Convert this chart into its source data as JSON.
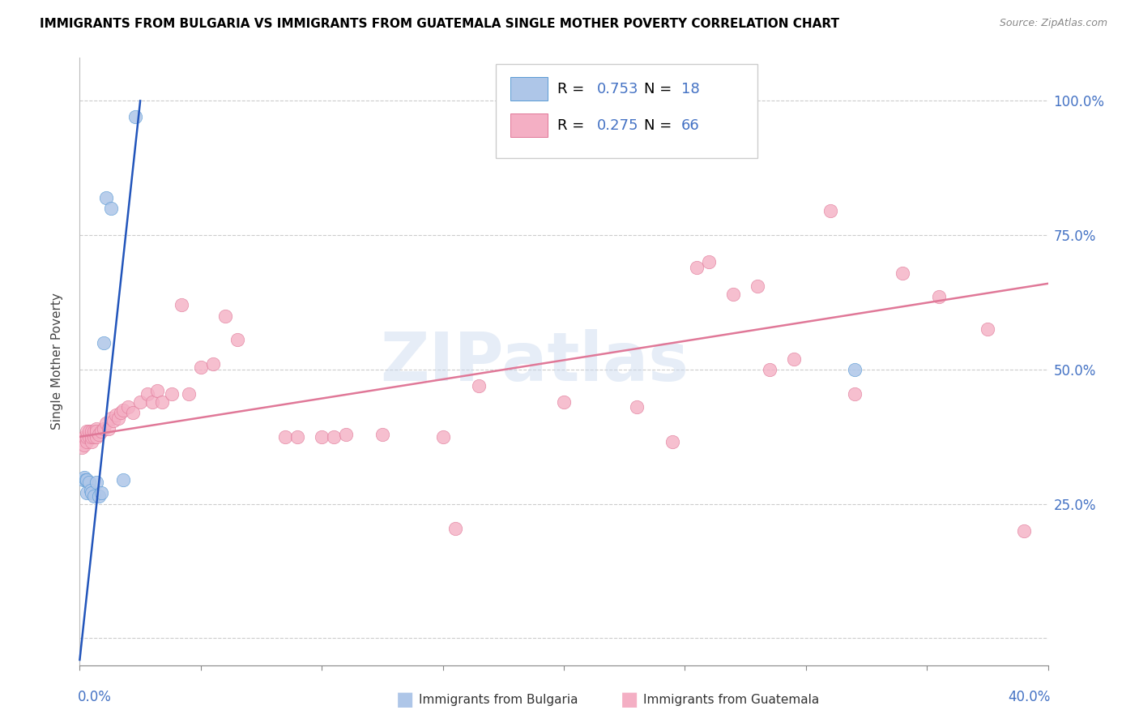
{
  "title": "IMMIGRANTS FROM BULGARIA VS IMMIGRANTS FROM GUATEMALA SINGLE MOTHER POVERTY CORRELATION CHART",
  "source": "Source: ZipAtlas.com",
  "ylabel_label": "Single Mother Poverty",
  "xlim": [
    0.0,
    0.4
  ],
  "ylim": [
    -0.05,
    1.08
  ],
  "ytick_positions": [
    0.0,
    0.25,
    0.5,
    0.75,
    1.0
  ],
  "ytick_labels_right": [
    "",
    "25.0%",
    "50.0%",
    "75.0%",
    "100.0%"
  ],
  "color_bulgaria_fill": "#aec6e8",
  "color_bulgaria_edge": "#5b9bd5",
  "color_guatemala_fill": "#f4afc4",
  "color_guatemala_edge": "#e07898",
  "color_line_bulgaria": "#2255bb",
  "color_line_guatemala": "#e07898",
  "watermark": "ZIPatlas",
  "bulgaria_x": [
    0.0015,
    0.002,
    0.0025,
    0.003,
    0.003,
    0.004,
    0.0045,
    0.005,
    0.006,
    0.007,
    0.008,
    0.009,
    0.01,
    0.011,
    0.013,
    0.018,
    0.023,
    0.32
  ],
  "bulgaria_y": [
    0.295,
    0.3,
    0.295,
    0.295,
    0.27,
    0.29,
    0.275,
    0.27,
    0.265,
    0.29,
    0.265,
    0.27,
    0.55,
    0.82,
    0.8,
    0.295,
    0.97,
    0.5
  ],
  "guatemala_x": [
    0.001,
    0.001,
    0.002,
    0.002,
    0.003,
    0.003,
    0.003,
    0.004,
    0.004,
    0.005,
    0.005,
    0.005,
    0.006,
    0.006,
    0.007,
    0.007,
    0.007,
    0.008,
    0.009,
    0.01,
    0.011,
    0.012,
    0.013,
    0.014,
    0.015,
    0.016,
    0.017,
    0.018,
    0.02,
    0.022,
    0.025,
    0.028,
    0.03,
    0.032,
    0.034,
    0.038,
    0.042,
    0.045,
    0.05,
    0.055,
    0.06,
    0.065,
    0.085,
    0.09,
    0.1,
    0.105,
    0.11,
    0.125,
    0.15,
    0.165,
    0.2,
    0.23,
    0.245,
    0.255,
    0.28,
    0.31,
    0.355,
    0.375,
    0.39,
    0.285,
    0.26,
    0.27,
    0.295,
    0.32,
    0.34,
    0.155
  ],
  "guatemala_y": [
    0.355,
    0.37,
    0.36,
    0.375,
    0.365,
    0.375,
    0.385,
    0.375,
    0.385,
    0.365,
    0.375,
    0.385,
    0.375,
    0.385,
    0.375,
    0.39,
    0.385,
    0.38,
    0.385,
    0.39,
    0.4,
    0.39,
    0.41,
    0.405,
    0.415,
    0.41,
    0.42,
    0.425,
    0.43,
    0.42,
    0.44,
    0.455,
    0.44,
    0.46,
    0.44,
    0.455,
    0.62,
    0.455,
    0.505,
    0.51,
    0.6,
    0.555,
    0.375,
    0.375,
    0.375,
    0.375,
    0.38,
    0.38,
    0.375,
    0.47,
    0.44,
    0.43,
    0.365,
    0.69,
    0.655,
    0.795,
    0.635,
    0.575,
    0.2,
    0.5,
    0.7,
    0.64,
    0.52,
    0.455,
    0.68,
    0.205
  ],
  "bg_line_x0": 0.0,
  "bg_line_x1": 0.025,
  "bg_line_y0": -0.04,
  "bg_line_y1": 1.0,
  "gt_line_x0": 0.0,
  "gt_line_x1": 0.4,
  "gt_line_y0": 0.375,
  "gt_line_y1": 0.66
}
